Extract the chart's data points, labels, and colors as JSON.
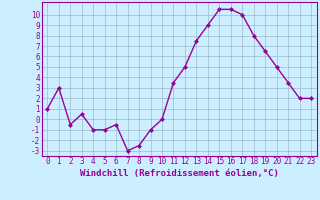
{
  "x": [
    0,
    1,
    2,
    3,
    4,
    5,
    6,
    7,
    8,
    9,
    10,
    11,
    12,
    13,
    14,
    15,
    16,
    17,
    18,
    19,
    20,
    21,
    22,
    23
  ],
  "y": [
    1,
    3,
    -0.5,
    0.5,
    -1,
    -1,
    -0.5,
    -3,
    -2.5,
    -1,
    0,
    3.5,
    5,
    7.5,
    9,
    10.5,
    10.5,
    10,
    8,
    6.5,
    5,
    3.5,
    2,
    2
  ],
  "line_color": "#990099",
  "marker": "D",
  "marker_size": 2.0,
  "bg_color": "#cceeff",
  "grid_color": "#99bbcc",
  "xlabel": "Windchill (Refroidissement éolien,°C)",
  "xlabel_fontsize": 6.5,
  "xlim": [
    -0.5,
    23.5
  ],
  "ylim": [
    -3.5,
    11.2
  ],
  "yticks": [
    10,
    9,
    8,
    7,
    6,
    5,
    4,
    3,
    2,
    1,
    0,
    -1,
    -2,
    -3
  ],
  "xticks": [
    0,
    1,
    2,
    3,
    4,
    5,
    6,
    7,
    8,
    9,
    10,
    11,
    12,
    13,
    14,
    15,
    16,
    17,
    18,
    19,
    20,
    21,
    22,
    23
  ],
  "tick_fontsize": 5.5,
  "spine_color": "#990099",
  "linewidth": 1.0
}
